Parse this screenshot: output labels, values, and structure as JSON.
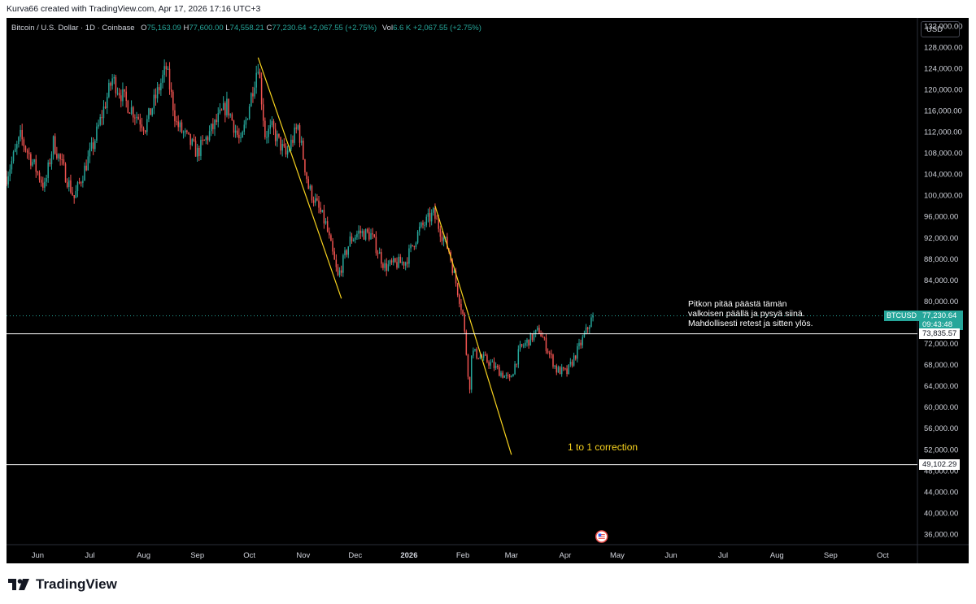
{
  "credit": "Kurva66 created with TradingView.com, Apr 17, 2026 17:16 UTC+3",
  "brand": "TradingView",
  "currency_button": "USD",
  "chart_data": {
    "type": "candlestick",
    "symbol_title": "Bitcoin / U.S. Dollar · 1D · Coinbase",
    "ohlc": {
      "o_label": "O",
      "o": "75,163.09",
      "h_label": "H",
      "h": "77,600.00",
      "l_label": "L",
      "l": "74,558.21",
      "c_label": "C",
      "c": "77,230.64",
      "change": "+2,067.55 (+2.75%)",
      "vol_label": "Vol",
      "vol": "6.6 K",
      "vol_change": "+2,067.55 (+2.75%)"
    },
    "y_axis": {
      "min": 34000,
      "max": 133500,
      "ticks": [
        "36,000.00",
        "40,000.00",
        "44,000.00",
        "48,000.00",
        "52,000.00",
        "56,000.00",
        "60,000.00",
        "64,000.00",
        "68,000.00",
        "72,000.00",
        "76,000.00",
        "80,000.00",
        "84,000.00",
        "88,000.00",
        "92,000.00",
        "96,000.00",
        "100,000.00",
        "104,000.00",
        "108,000.00",
        "112,000.00",
        "116,000.00",
        "120,000.00",
        "124,000.00",
        "128,000.00",
        "132,000.00"
      ]
    },
    "x_axis": {
      "start": "2025-05-14",
      "end": "2026-10-21",
      "months": [
        {
          "label": "Jun",
          "date": "2025-06-01"
        },
        {
          "label": "Jul",
          "date": "2025-07-01"
        },
        {
          "label": "Aug",
          "date": "2025-08-01"
        },
        {
          "label": "Sep",
          "date": "2025-09-01"
        },
        {
          "label": "Oct",
          "date": "2025-10-01"
        },
        {
          "label": "Nov",
          "date": "2025-11-01"
        },
        {
          "label": "Dec",
          "date": "2025-12-01"
        },
        {
          "label": "2026",
          "date": "2026-01-01"
        },
        {
          "label": "Feb",
          "date": "2026-02-01"
        },
        {
          "label": "Mar",
          "date": "2026-03-01"
        },
        {
          "label": "Apr",
          "date": "2026-04-01"
        },
        {
          "label": "May",
          "date": "2026-05-01"
        },
        {
          "label": "Jun",
          "date": "2026-06-01"
        },
        {
          "label": "Jul",
          "date": "2026-07-01"
        },
        {
          "label": "Aug",
          "date": "2026-08-01"
        },
        {
          "label": "Sep",
          "date": "2026-09-01"
        },
        {
          "label": "Oct",
          "date": "2026-10-01"
        }
      ]
    },
    "price_path": [
      [
        "2025-05-14",
        103500
      ],
      [
        "2025-05-22",
        111000
      ],
      [
        "2025-06-05",
        101500
      ],
      [
        "2025-06-10",
        110000
      ],
      [
        "2025-06-22",
        99500
      ],
      [
        "2025-07-03",
        109500
      ],
      [
        "2025-07-14",
        122000
      ],
      [
        "2025-07-22",
        117500
      ],
      [
        "2025-08-02",
        113000
      ],
      [
        "2025-08-14",
        124000
      ],
      [
        "2025-08-20",
        113500
      ],
      [
        "2025-09-01",
        108000
      ],
      [
        "2025-09-18",
        117000
      ],
      [
        "2025-09-26",
        109500
      ],
      [
        "2025-10-06",
        125000
      ],
      [
        "2025-10-10",
        111500
      ],
      [
        "2025-10-14",
        112500
      ],
      [
        "2025-10-22",
        107500
      ],
      [
        "2025-10-29",
        113000
      ],
      [
        "2025-11-04",
        101500
      ],
      [
        "2025-11-14",
        94500
      ],
      [
        "2025-11-21",
        84500
      ],
      [
        "2025-11-28",
        91500
      ],
      [
        "2025-12-03",
        93000
      ],
      [
        "2025-12-10",
        92500
      ],
      [
        "2025-12-18",
        86500
      ],
      [
        "2025-12-30",
        87500
      ],
      [
        "2026-01-07",
        93500
      ],
      [
        "2026-01-15",
        96500
      ],
      [
        "2026-01-24",
        89500
      ],
      [
        "2026-02-01",
        77500
      ],
      [
        "2026-02-05",
        63000
      ],
      [
        "2026-02-06",
        70500
      ],
      [
        "2026-02-16",
        68500
      ],
      [
        "2026-02-28",
        65000
      ],
      [
        "2026-03-06",
        71000
      ],
      [
        "2026-03-17",
        74500
      ],
      [
        "2026-03-27",
        67000
      ],
      [
        "2026-04-02",
        66500
      ],
      [
        "2026-04-10",
        72000
      ],
      [
        "2026-04-17",
        77230.64
      ]
    ],
    "trend_lines": [
      {
        "color": "#f7d21e",
        "from": [
          "2025-10-06",
          126000
        ],
        "to": [
          "2025-11-23",
          80500
        ]
      },
      {
        "color": "#f7d21e",
        "from": [
          "2026-01-16",
          98000
        ],
        "to": [
          "2026-03-01",
          51000
        ]
      }
    ],
    "horizontal_lines": [
      {
        "price": 73835.57,
        "label": "73,835.57",
        "color": "#ffffff"
      },
      {
        "price": 49102.29,
        "label": "49,102.29",
        "color": "#ffffff"
      }
    ],
    "last_price": {
      "price": 77230.64,
      "label": "77,230.64",
      "countdown": "09:43:48",
      "symbol": "BTCUSD",
      "color": "#26a69a"
    },
    "colors": {
      "up": "#26a69a",
      "down": "#ef5350",
      "background": "#000000",
      "axis_text": "#d1d4dc"
    },
    "annotations": {
      "note": "Pitkon pitää päästä tämän\nvalkoisen päällä ja pysyä siinä.\nMahdollisesti retest ja sitten ylös.",
      "correction": "1 to 1 correction"
    },
    "event_marker_date": "2026-04-22",
    "event_marker_icon": "us-flag-icon"
  }
}
